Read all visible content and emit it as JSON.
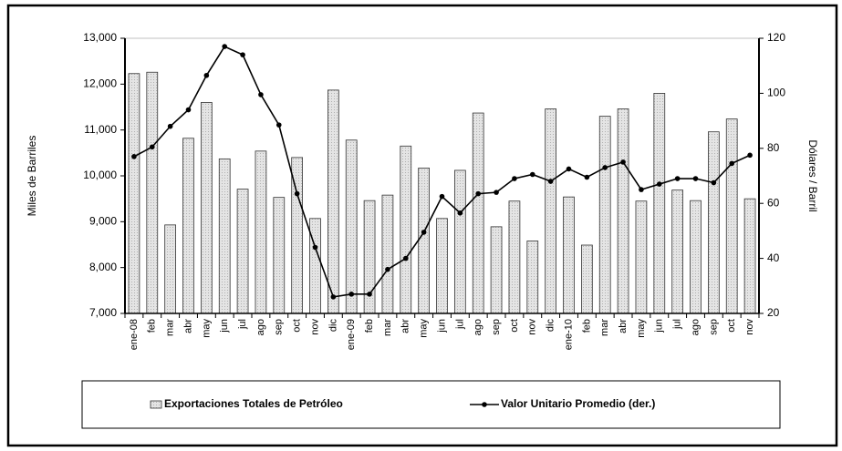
{
  "chart_data": {
    "type": "bar_line",
    "y_label": "Miles de Barriles",
    "y2_label": "Dólares / Barril",
    "categories": [
      "ene-08",
      "feb",
      "mar",
      "abr",
      "may",
      "jun",
      "jul",
      "ago",
      "sep",
      "oct",
      "nov",
      "dic",
      "ene-09",
      "feb",
      "mar",
      "abr",
      "may",
      "jun",
      "jul",
      "ago",
      "sep",
      "oct",
      "nov",
      "dic",
      "ene-10",
      "feb",
      "mar",
      "abr",
      "may",
      "jun",
      "jul",
      "ago",
      "sep",
      "oct",
      "nov"
    ],
    "series": [
      {
        "name": "Exportaciones  Totales de Petróleo",
        "type": "bar",
        "color": "#d9d9d9",
        "values": [
          12230,
          12260,
          8930,
          10820,
          11600,
          10370,
          9710,
          10540,
          9530,
          10400,
          9070,
          11870,
          10780,
          9460,
          9580,
          10650,
          10170,
          9070,
          10120,
          11370,
          8890,
          9450,
          8580,
          11460,
          9540,
          8490,
          11300,
          11460,
          9450,
          11800,
          9690,
          9460,
          10960,
          11240,
          9500
        ]
      },
      {
        "name": "Valor Unitario Promedio (der.)",
        "type": "line",
        "axis": "y2",
        "color": "#000000",
        "values": [
          77,
          80.5,
          88,
          94,
          106.5,
          117,
          114,
          99.5,
          88.5,
          63.5,
          44,
          26,
          27,
          27,
          36,
          40,
          49.5,
          62.5,
          56.5,
          63.5,
          64,
          69,
          70.5,
          68,
          72.5,
          69.5,
          73,
          75,
          65,
          67,
          69,
          69,
          67.5,
          74.5,
          77.5
        ]
      }
    ],
    "ylim": [
      7000,
      13000
    ],
    "yticks": [
      {
        "value": 7000,
        "label": "7,000"
      },
      {
        "value": 8000,
        "label": "8,000"
      },
      {
        "value": 9000,
        "label": "9,000"
      },
      {
        "value": 10000,
        "label": "10,000"
      },
      {
        "value": 11000,
        "label": "11,000"
      },
      {
        "value": 12000,
        "label": "12,000"
      },
      {
        "value": 13000,
        "label": "13,000"
      }
    ],
    "y2lim": [
      20,
      120
    ],
    "y2ticks": [
      20,
      40,
      60,
      80,
      100,
      120
    ],
    "grid": false,
    "legend": "bottom"
  }
}
